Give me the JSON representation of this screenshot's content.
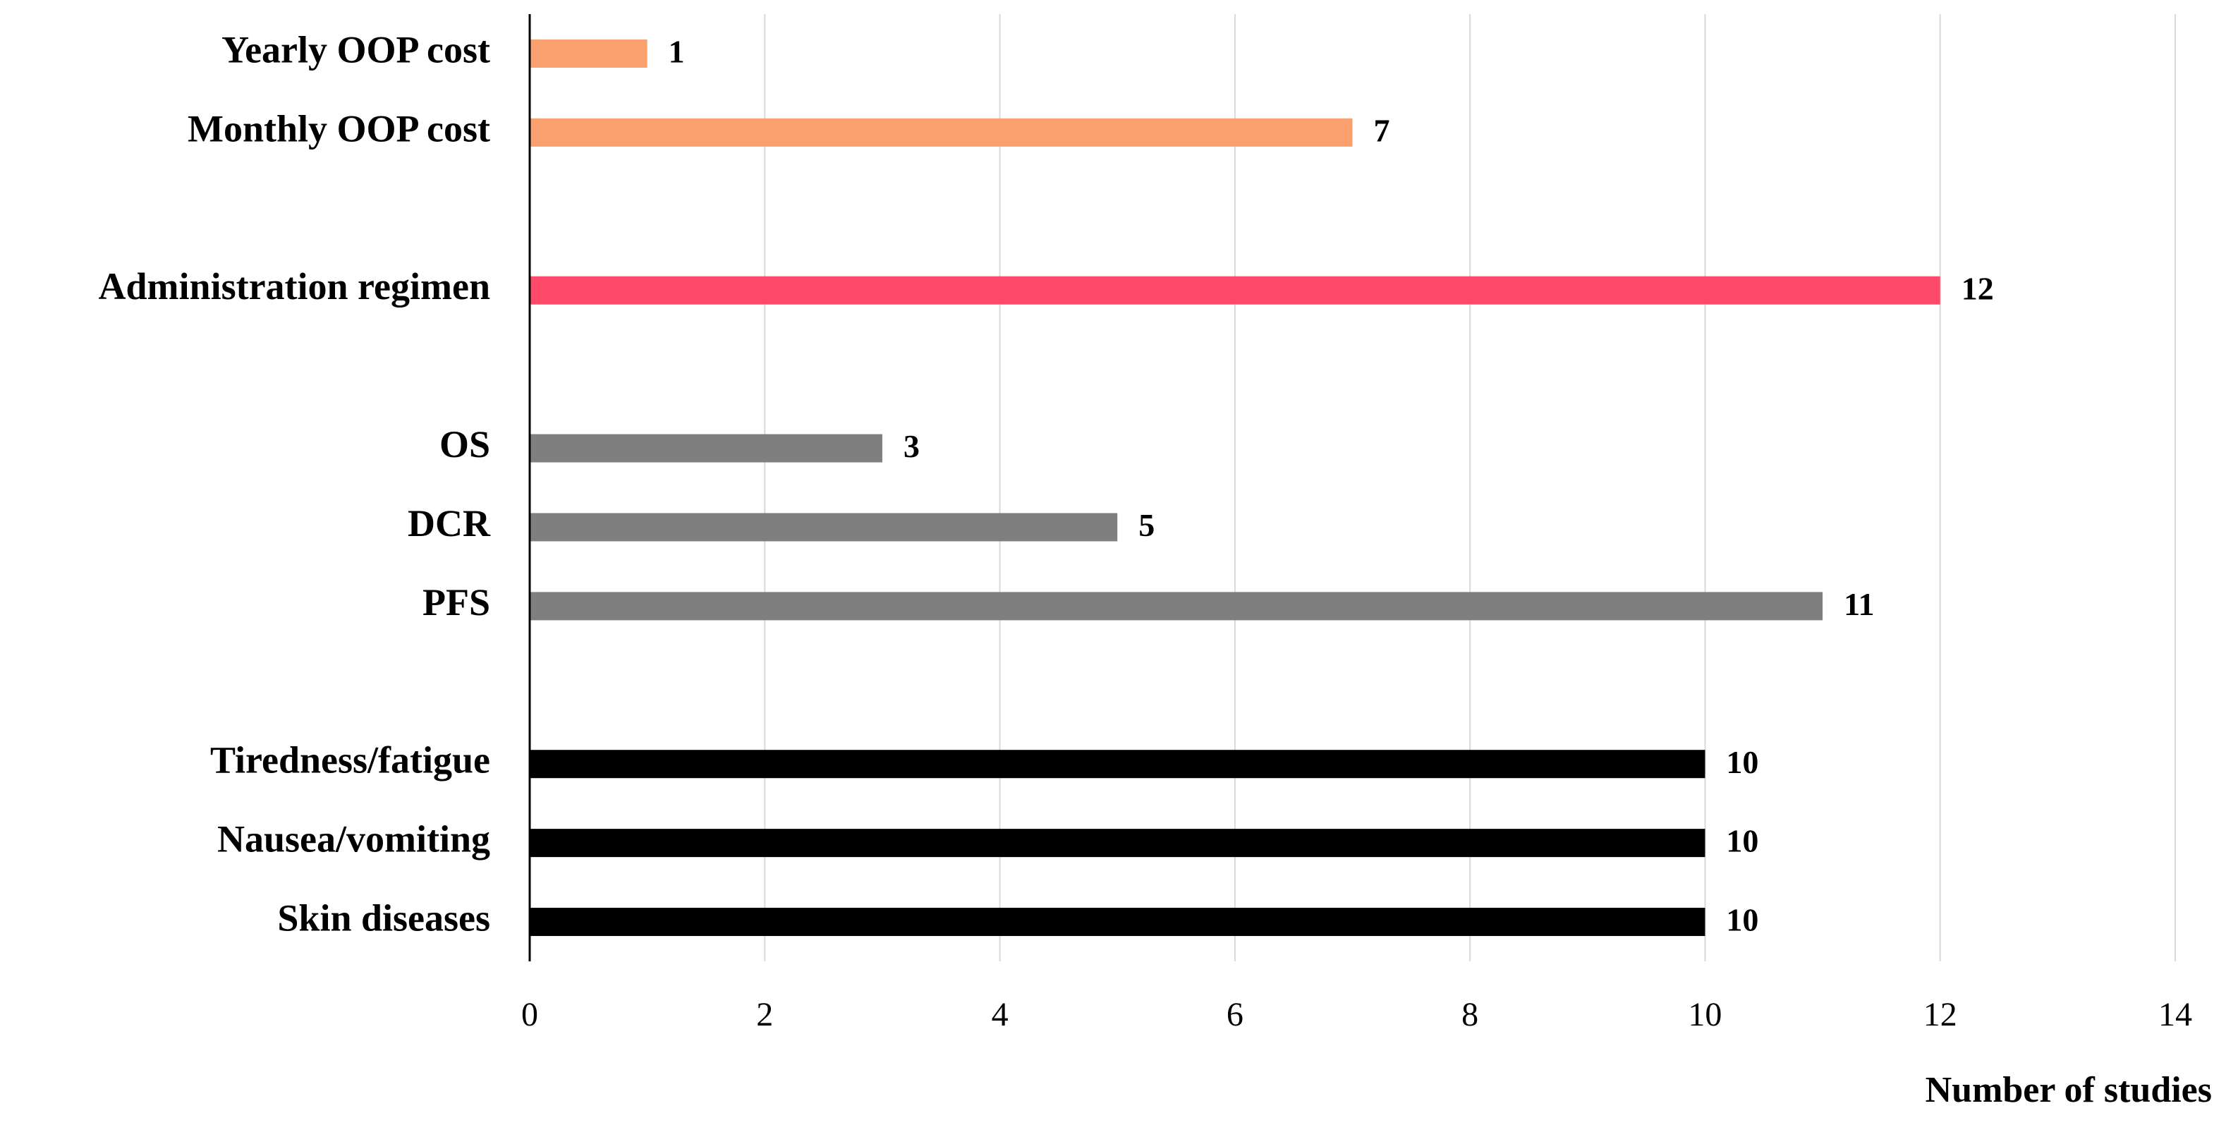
{
  "chart_data": {
    "type": "bar",
    "orientation": "horizontal",
    "categories": [
      "Yearly OOP cost",
      "Monthly OOP cost",
      null,
      "Administration regimen",
      null,
      "OS",
      "DCR",
      "PFS",
      null,
      "Tiredness/fatigue",
      "Nausea/vomiting",
      "Skin diseases"
    ],
    "values": [
      1,
      7,
      null,
      12,
      null,
      3,
      5,
      11,
      null,
      10,
      10,
      10
    ],
    "colors": [
      "#f9a06e",
      "#f9a06e",
      null,
      "#fe4a6a",
      null,
      "#7f7f7f",
      "#7f7f7f",
      "#7f7f7f",
      null,
      "#000000",
      "#000000",
      "#000000"
    ],
    "x_label": "Number of studies",
    "xlim": [
      0,
      14
    ],
    "xticks": [
      0,
      2,
      4,
      6,
      8,
      10,
      12,
      14
    ],
    "grid": true
  }
}
